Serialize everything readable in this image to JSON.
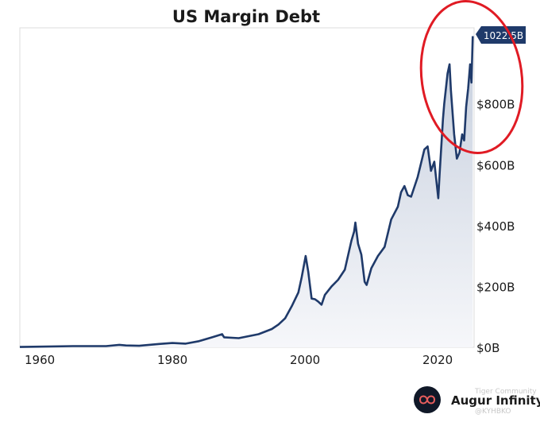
{
  "chart_data": {
    "type": "area",
    "title": "US Margin Debt",
    "xlabel": "",
    "ylabel": "",
    "xlim": [
      1957,
      2025.5
    ],
    "ylim": [
      0,
      1050
    ],
    "x_ticks": [
      1960,
      1980,
      2000,
      2020
    ],
    "x_tick_labels": [
      "1960",
      "1980",
      "2000",
      "2020"
    ],
    "y_ticks": [
      0,
      200,
      400,
      600,
      800
    ],
    "y_tick_labels": [
      "$0B",
      "$200B",
      "$400B",
      "$600B",
      "$800B"
    ],
    "y_axis_side": "right",
    "grid": false,
    "legend": "none",
    "last_value_label": "1022.5B",
    "annotation": "red ellipse around 2020-2025 peak",
    "series": [
      {
        "x": [
          1957,
          1960,
          1965,
          1970,
          1972,
          1973,
          1975,
          1978,
          1980,
          1982,
          1984,
          1986,
          1987.5,
          1987.8,
          1990,
          1993,
          1995,
          1996,
          1997,
          1998,
          1999,
          1999.5,
          2000.1,
          2000.5,
          2001,
          2001.5,
          2002,
          2002.5,
          2003,
          2004,
          2005,
          2006,
          2007,
          2007.4,
          2007.6,
          2008,
          2008.5,
          2009,
          2009.3,
          2010,
          2011,
          2012,
          2013,
          2014,
          2014.5,
          2015,
          2015.5,
          2016,
          2017,
          2018,
          2018.5,
          2019,
          2019.5,
          2020.1,
          2020.3,
          2020.8,
          2021,
          2021.5,
          2021.8,
          2022,
          2022.5,
          2022.9,
          2023.3,
          2023.7,
          2024,
          2024.3,
          2024.6,
          2024.9,
          2025.1,
          2025.3
        ],
        "values": [
          1,
          2,
          4,
          4,
          8,
          6,
          5,
          11,
          14,
          12,
          20,
          33,
          43,
          33,
          30,
          43,
          60,
          75,
          95,
          135,
          180,
          230,
          300,
          248,
          160,
          158,
          150,
          140,
          172,
          200,
          222,
          255,
          350,
          380,
          410,
          340,
          305,
          215,
          205,
          260,
          300,
          330,
          420,
          462,
          510,
          530,
          500,
          495,
          560,
          650,
          660,
          580,
          610,
          490,
          570,
          750,
          800,
          900,
          930,
          845,
          700,
          620,
          640,
          700,
          680,
          790,
          850,
          930,
          870,
          1022.5
        ]
      }
    ],
    "colors": {
      "line": "#1f3a6a",
      "fill_top": "#c5cedd",
      "fill_bottom": "#f6f7fa",
      "badge": "#1f3a6a",
      "ellipse": "#e01b24"
    }
  },
  "brand": {
    "name": "Augur Infinity",
    "logo_icon": "infinity-icon",
    "watermark_line1": "Tiger Community",
    "watermark_line2": "@KYHBKO"
  }
}
